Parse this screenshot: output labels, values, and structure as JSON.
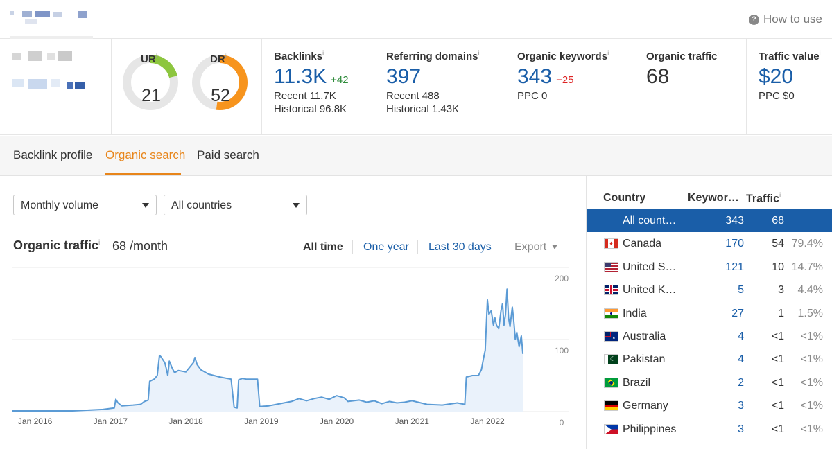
{
  "header": {
    "help_label": "How to use",
    "help_icon": "question-circle-icon"
  },
  "metrics": {
    "ur": {
      "label": "UR",
      "info": "i",
      "value": "21",
      "fraction": 0.21,
      "color": "#8dc63f"
    },
    "dr": {
      "label": "DR",
      "info": "i",
      "value": "52",
      "fraction": 0.52,
      "color": "#f7941d"
    },
    "backlinks": {
      "label": "Backlinks",
      "info": "i",
      "value": "11.3K",
      "delta": "+42",
      "recent": "Recent 11.7K",
      "historical": "Historical 96.8K"
    },
    "referring_domains": {
      "label": "Referring domains",
      "info": "i",
      "value": "397",
      "recent": "Recent 488",
      "historical": "Historical 1.43K"
    },
    "organic_keywords": {
      "label": "Organic keywords",
      "info": "i",
      "value": "343",
      "delta": "−25",
      "sub": "PPC 0"
    },
    "organic_traffic": {
      "label": "Organic traffic",
      "info": "i",
      "value": "68"
    },
    "traffic_value": {
      "label": "Traffic value",
      "info": "i",
      "value": "$20",
      "sub": "PPC $0"
    }
  },
  "tabs": [
    {
      "label": "Backlink profile",
      "active": false
    },
    {
      "label": "Organic search",
      "active": true
    },
    {
      "label": "Paid search",
      "active": false
    }
  ],
  "filters": {
    "volume": "Monthly volume",
    "countries": "All countries"
  },
  "traffic_panel": {
    "title": "Organic traffic",
    "info": "i",
    "value": "68 /month",
    "ranges": [
      "All time",
      "One year",
      "Last 30 days"
    ],
    "active_range": "All time",
    "export_label": "Export"
  },
  "chart_data": {
    "type": "area",
    "xlabels": [
      "Jan 2016",
      "Jan 2017",
      "Jan 2018",
      "Jan 2019",
      "Jan 2020",
      "Jan 2021",
      "Jan 2022"
    ],
    "yticks": [
      "200",
      "100",
      "0"
    ],
    "ylim": [
      0,
      200
    ],
    "xlim": [
      2015.7,
      2022.8
    ],
    "grid": true,
    "line_color": "#5b9bd5",
    "fill_color": "#eaf2fb",
    "points": [
      [
        2015.7,
        1
      ],
      [
        2016.5,
        1
      ],
      [
        2016.9,
        3
      ],
      [
        2017.05,
        5
      ],
      [
        2017.07,
        17
      ],
      [
        2017.1,
        12
      ],
      [
        2017.15,
        8
      ],
      [
        2017.3,
        9
      ],
      [
        2017.4,
        10
      ],
      [
        2017.45,
        14
      ],
      [
        2017.5,
        16
      ],
      [
        2017.52,
        42
      ],
      [
        2017.58,
        45
      ],
      [
        2017.62,
        50
      ],
      [
        2017.65,
        78
      ],
      [
        2017.67,
        76
      ],
      [
        2017.72,
        68
      ],
      [
        2017.74,
        60
      ],
      [
        2017.76,
        50
      ],
      [
        2017.78,
        70
      ],
      [
        2017.82,
        60
      ],
      [
        2017.85,
        54
      ],
      [
        2017.9,
        57
      ],
      [
        2018.0,
        55
      ],
      [
        2018.1,
        68
      ],
      [
        2018.12,
        75
      ],
      [
        2018.15,
        65
      ],
      [
        2018.2,
        58
      ],
      [
        2018.3,
        52
      ],
      [
        2018.45,
        48
      ],
      [
        2018.6,
        45
      ],
      [
        2018.64,
        6
      ],
      [
        2018.68,
        5
      ],
      [
        2018.7,
        44
      ],
      [
        2018.75,
        46
      ],
      [
        2018.8,
        45
      ],
      [
        2018.95,
        45
      ],
      [
        2018.98,
        7
      ],
      [
        2019.1,
        8
      ],
      [
        2019.2,
        10
      ],
      [
        2019.3,
        12
      ],
      [
        2019.4,
        14
      ],
      [
        2019.5,
        18
      ],
      [
        2019.6,
        15
      ],
      [
        2019.7,
        18
      ],
      [
        2019.8,
        20
      ],
      [
        2019.9,
        17
      ],
      [
        2020.0,
        22
      ],
      [
        2020.1,
        19
      ],
      [
        2020.15,
        14
      ],
      [
        2020.3,
        16
      ],
      [
        2020.4,
        13
      ],
      [
        2020.5,
        15
      ],
      [
        2020.6,
        11
      ],
      [
        2020.7,
        14
      ],
      [
        2020.8,
        12
      ],
      [
        2020.9,
        13
      ],
      [
        2021.0,
        15
      ],
      [
        2021.2,
        10
      ],
      [
        2021.4,
        9
      ],
      [
        2021.6,
        12
      ],
      [
        2021.7,
        10
      ],
      [
        2021.72,
        48
      ],
      [
        2021.8,
        50
      ],
      [
        2021.88,
        50
      ],
      [
        2021.92,
        58
      ],
      [
        2021.95,
        75
      ],
      [
        2021.97,
        85
      ],
      [
        2022.0,
        155
      ],
      [
        2022.02,
        135
      ],
      [
        2022.05,
        140
      ],
      [
        2022.08,
        120
      ],
      [
        2022.1,
        130
      ],
      [
        2022.12,
        120
      ],
      [
        2022.15,
        115
      ],
      [
        2022.18,
        140
      ],
      [
        2022.2,
        150
      ],
      [
        2022.22,
        120
      ],
      [
        2022.24,
        135
      ],
      [
        2022.26,
        170
      ],
      [
        2022.28,
        130
      ],
      [
        2022.3,
        118
      ],
      [
        2022.33,
        145
      ],
      [
        2022.35,
        125
      ],
      [
        2022.37,
        100
      ],
      [
        2022.39,
        110
      ],
      [
        2022.42,
        90
      ],
      [
        2022.45,
        105
      ],
      [
        2022.47,
        80
      ]
    ]
  },
  "countries_table": {
    "headers": {
      "country": "Country",
      "keywords": "Keywor…",
      "traffic": "Traffic",
      "info": "i"
    },
    "rows": [
      {
        "name": "All count…",
        "keywords": "343",
        "traffic": "68",
        "pct": "",
        "flag": "none",
        "selected": true
      },
      {
        "name": "Canada",
        "keywords": "170",
        "traffic": "54",
        "pct": "79.4%",
        "flag": "canada-flag-icon"
      },
      {
        "name": "United S…",
        "keywords": "121",
        "traffic": "10",
        "pct": "14.7%",
        "flag": "usa-flag-icon"
      },
      {
        "name": "United K…",
        "keywords": "5",
        "traffic": "3",
        "pct": "4.4%",
        "flag": "uk-flag-icon"
      },
      {
        "name": "India",
        "keywords": "27",
        "traffic": "1",
        "pct": "1.5%",
        "flag": "india-flag-icon"
      },
      {
        "name": "Australia",
        "keywords": "4",
        "traffic": "<1",
        "pct": "<1%",
        "flag": "australia-flag-icon"
      },
      {
        "name": "Pakistan",
        "keywords": "4",
        "traffic": "<1",
        "pct": "<1%",
        "flag": "pakistan-flag-icon"
      },
      {
        "name": "Brazil",
        "keywords": "2",
        "traffic": "<1",
        "pct": "<1%",
        "flag": "brazil-flag-icon"
      },
      {
        "name": "Germany",
        "keywords": "3",
        "traffic": "<1",
        "pct": "<1%",
        "flag": "germany-flag-icon"
      },
      {
        "name": "Philippines",
        "keywords": "3",
        "traffic": "<1",
        "pct": "<1%",
        "flag": "philippines-flag-icon"
      }
    ]
  }
}
